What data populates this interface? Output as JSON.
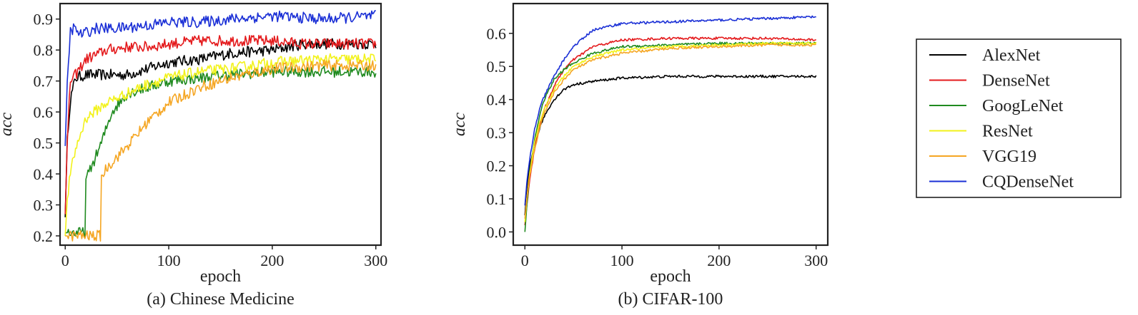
{
  "legend": {
    "entries": [
      {
        "name": "AlexNet",
        "color": "#000000"
      },
      {
        "name": "DenseNet",
        "color": "#e41a1c"
      },
      {
        "name": "GoogLeNet",
        "color": "#1f8a1f"
      },
      {
        "name": "ResNet",
        "color": "#f2f21a"
      },
      {
        "name": "VGG19",
        "color": "#f5a623"
      },
      {
        "name": "CQDenseNet",
        "color": "#1a2fd6"
      }
    ]
  },
  "chart_data": [
    {
      "type": "line",
      "caption": "(a) Chinese Medicine",
      "xlabel": "epoch",
      "ylabel": "acc",
      "xlim": [
        -5,
        305
      ],
      "ylim": [
        0.17,
        0.95
      ],
      "xticks": [
        0,
        100,
        200,
        300
      ],
      "yticks": [
        0.2,
        0.3,
        0.4,
        0.5,
        0.6,
        0.7,
        0.8,
        0.9
      ],
      "ytick_labels": [
        "0.2",
        "0.3",
        "0.4",
        "0.5",
        "0.6",
        "0.7",
        "0.8",
        "0.9"
      ],
      "series": [
        {
          "name": "AlexNet",
          "x": [
            0,
            2,
            5,
            10,
            20,
            40,
            60,
            80,
            100,
            130,
            160,
            200,
            230,
            260,
            300
          ],
          "y": [
            0.26,
            0.52,
            0.64,
            0.71,
            0.72,
            0.72,
            0.72,
            0.74,
            0.76,
            0.77,
            0.79,
            0.8,
            0.82,
            0.82,
            0.82
          ]
        },
        {
          "name": "DenseNet",
          "x": [
            0,
            2,
            5,
            10,
            20,
            40,
            60,
            80,
            100,
            130,
            160,
            200,
            230,
            260,
            300
          ],
          "y": [
            0.27,
            0.5,
            0.7,
            0.72,
            0.77,
            0.8,
            0.81,
            0.81,
            0.82,
            0.83,
            0.83,
            0.83,
            0.82,
            0.82,
            0.82
          ]
        },
        {
          "name": "GoogLeNet",
          "x": [
            0,
            10,
            19,
            20,
            25,
            35,
            45,
            60,
            80,
            100,
            130,
            160,
            200,
            250,
            300
          ],
          "y": [
            0.21,
            0.21,
            0.21,
            0.38,
            0.42,
            0.5,
            0.6,
            0.66,
            0.68,
            0.7,
            0.71,
            0.72,
            0.73,
            0.73,
            0.73
          ]
        },
        {
          "name": "ResNet",
          "x": [
            0,
            2,
            5,
            10,
            20,
            40,
            60,
            80,
            100,
            130,
            160,
            200,
            250,
            300
          ],
          "y": [
            0.2,
            0.32,
            0.4,
            0.48,
            0.58,
            0.63,
            0.66,
            0.69,
            0.71,
            0.73,
            0.74,
            0.76,
            0.77,
            0.77
          ]
        },
        {
          "name": "VGG19",
          "x": [
            0,
            10,
            20,
            34,
            35,
            40,
            60,
            80,
            100,
            130,
            160,
            200,
            250,
            300
          ],
          "y": [
            0.2,
            0.2,
            0.2,
            0.2,
            0.39,
            0.42,
            0.49,
            0.57,
            0.63,
            0.68,
            0.71,
            0.74,
            0.75,
            0.75
          ]
        },
        {
          "name": "CQDenseNet",
          "x": [
            0,
            2,
            5,
            8,
            15,
            30,
            50,
            80,
            100,
            130,
            160,
            200,
            250,
            300
          ],
          "y": [
            0.49,
            0.7,
            0.86,
            0.87,
            0.85,
            0.87,
            0.87,
            0.88,
            0.89,
            0.89,
            0.9,
            0.91,
            0.9,
            0.91
          ]
        }
      ]
    },
    {
      "type": "line",
      "caption": "(b) CIFAR-100",
      "xlabel": "epoch",
      "ylabel": "acc",
      "xlim": [
        -12,
        312
      ],
      "ylim": [
        -0.04,
        0.69
      ],
      "xticks": [
        0,
        100,
        200,
        300
      ],
      "yticks": [
        0.0,
        0.1,
        0.2,
        0.3,
        0.4,
        0.5,
        0.6
      ],
      "ytick_labels": [
        "0.0",
        "0.1",
        "0.2",
        "0.3",
        "0.4",
        "0.5",
        "0.6"
      ],
      "series": [
        {
          "name": "AlexNet",
          "x": [
            0,
            2,
            5,
            10,
            15,
            20,
            30,
            40,
            50,
            70,
            100,
            150,
            200,
            250,
            300
          ],
          "y": [
            0.05,
            0.13,
            0.2,
            0.27,
            0.31,
            0.35,
            0.4,
            0.43,
            0.445,
            0.455,
            0.465,
            0.47,
            0.47,
            0.47,
            0.47
          ]
        },
        {
          "name": "DenseNet",
          "x": [
            0,
            2,
            5,
            10,
            15,
            20,
            30,
            40,
            50,
            70,
            100,
            150,
            200,
            250,
            300
          ],
          "y": [
            0.02,
            0.08,
            0.16,
            0.25,
            0.32,
            0.37,
            0.44,
            0.49,
            0.52,
            0.56,
            0.58,
            0.585,
            0.585,
            0.585,
            0.58
          ]
        },
        {
          "name": "GoogLeNet",
          "x": [
            0,
            2,
            5,
            10,
            15,
            20,
            30,
            40,
            50,
            70,
            100,
            150,
            200,
            250,
            300
          ],
          "y": [
            0.0,
            0.08,
            0.18,
            0.28,
            0.35,
            0.4,
            0.46,
            0.49,
            0.51,
            0.54,
            0.56,
            0.565,
            0.57,
            0.57,
            0.57
          ]
        },
        {
          "name": "ResNet",
          "x": [
            0,
            2,
            5,
            10,
            15,
            20,
            30,
            40,
            50,
            70,
            100,
            150,
            200,
            250,
            300
          ],
          "y": [
            0.03,
            0.1,
            0.18,
            0.27,
            0.33,
            0.37,
            0.43,
            0.47,
            0.5,
            0.53,
            0.55,
            0.56,
            0.565,
            0.57,
            0.57
          ]
        },
        {
          "name": "VGG19",
          "x": [
            0,
            2,
            5,
            10,
            15,
            20,
            30,
            40,
            50,
            70,
            100,
            150,
            200,
            250,
            300
          ],
          "y": [
            0.04,
            0.1,
            0.17,
            0.25,
            0.31,
            0.36,
            0.42,
            0.46,
            0.49,
            0.52,
            0.54,
            0.555,
            0.56,
            0.565,
            0.565
          ]
        },
        {
          "name": "CQDenseNet",
          "x": [
            0,
            2,
            5,
            10,
            15,
            20,
            30,
            40,
            50,
            70,
            100,
            150,
            200,
            250,
            300
          ],
          "y": [
            0.08,
            0.15,
            0.22,
            0.31,
            0.37,
            0.41,
            0.47,
            0.52,
            0.56,
            0.61,
            0.63,
            0.635,
            0.64,
            0.645,
            0.65
          ]
        }
      ]
    }
  ]
}
